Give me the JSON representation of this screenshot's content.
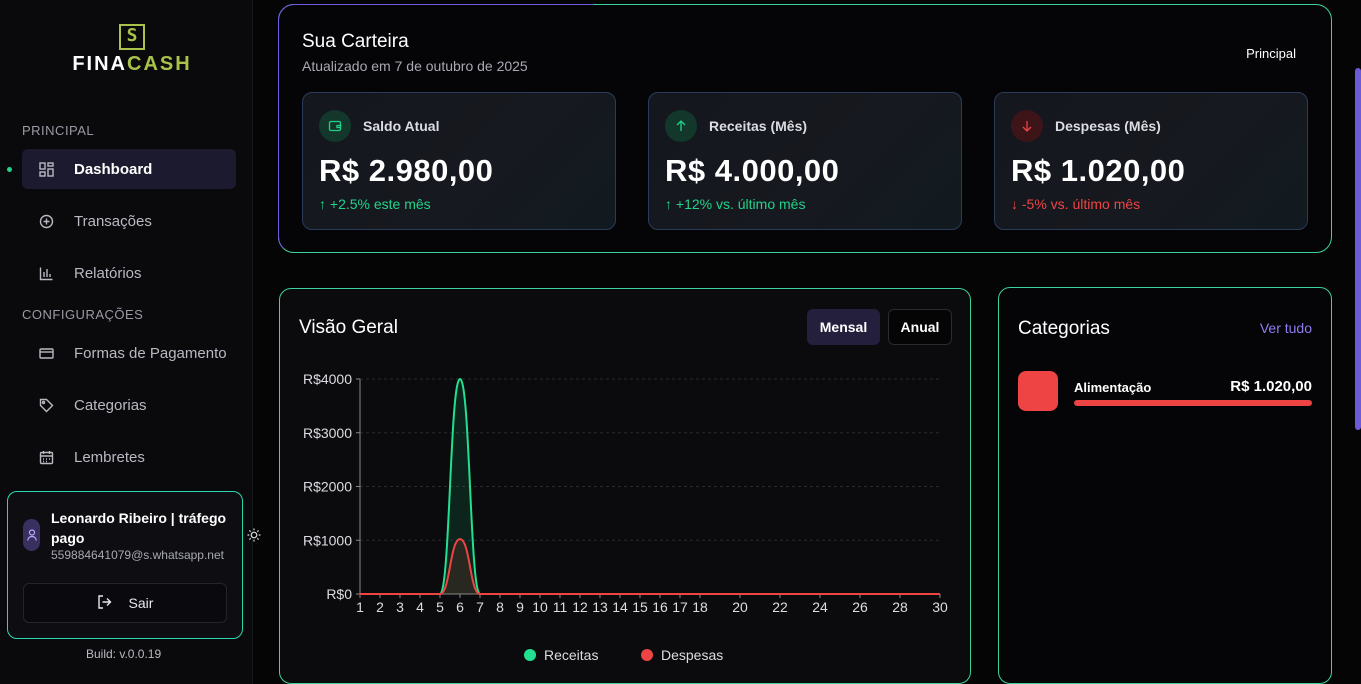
{
  "sidebar": {
    "logo_part1": "FINA",
    "logo_part2": "CASH",
    "section_main": "PRINCIPAL",
    "section_settings": "CONFIGURAÇÕES",
    "items_main": [
      {
        "label": "Dashboard",
        "icon": "layout-grid-icon",
        "active": true
      },
      {
        "label": "Transações",
        "icon": "plus-circle-icon"
      },
      {
        "label": "Relatórios",
        "icon": "bar-chart-icon"
      }
    ],
    "items_settings": [
      {
        "label": "Formas de Pagamento",
        "icon": "credit-card-icon"
      },
      {
        "label": "Categorias",
        "icon": "tag-icon"
      },
      {
        "label": "Lembretes",
        "icon": "calendar-icon"
      }
    ],
    "user": {
      "name": "Leonardo Ribeiro | tráfego pago",
      "email": "559884641079@s.whatsapp.net",
      "logout_label": "Sair"
    },
    "build": "Build: v.0.0.19"
  },
  "wallet": {
    "title": "Sua Carteira",
    "subtitle": "Atualizado em 7 de outubro de 2025",
    "badge": "Principal",
    "stats": [
      {
        "label": "Saldo Atual",
        "value": "R$ 2.980,00",
        "trend": "↑ +2.5% este mês",
        "color": "#22d38a",
        "icon": "wallet-icon"
      },
      {
        "label": "Receitas (Mês)",
        "value": "R$ 4.000,00",
        "trend": "↑ +12% vs. último mês",
        "color": "#22d38a",
        "icon": "arrow-up-icon"
      },
      {
        "label": "Despesas (Mês)",
        "value": "R$ 1.020,00",
        "trend": "↓ -5% vs. último mês",
        "color": "#ef4444",
        "icon": "arrow-down-icon"
      }
    ]
  },
  "overview": {
    "title": "Visão Geral",
    "btn_monthly": "Mensal",
    "btn_yearly": "Anual"
  },
  "chart_data": {
    "type": "area",
    "x": [
      1,
      2,
      3,
      4,
      5,
      6,
      7,
      8,
      9,
      10,
      11,
      12,
      13,
      14,
      15,
      16,
      17,
      18,
      19,
      20,
      21,
      22,
      23,
      24,
      25,
      26,
      27,
      28,
      29,
      30
    ],
    "x_tick_labels": [
      "1",
      "2",
      "3",
      "4",
      "5",
      "6",
      "7",
      "8",
      "9",
      "10",
      "11",
      "12",
      "13",
      "14",
      "15",
      "16",
      "17",
      "18",
      "20",
      "22",
      "24",
      "26",
      "28",
      "30"
    ],
    "y_tick_labels": [
      "R$0",
      "R$1000",
      "R$2000",
      "R$3000",
      "R$4000"
    ],
    "ylim": [
      0,
      4000
    ],
    "series": [
      {
        "name": "Receitas",
        "color": "#22e08f",
        "values": [
          0,
          0,
          0,
          0,
          0,
          4000,
          0,
          0,
          0,
          0,
          0,
          0,
          0,
          0,
          0,
          0,
          0,
          0,
          0,
          0,
          0,
          0,
          0,
          0,
          0,
          0,
          0,
          0,
          0,
          0
        ]
      },
      {
        "name": "Despesas",
        "color": "#ef4444",
        "values": [
          0,
          0,
          0,
          0,
          0,
          1020,
          0,
          0,
          0,
          0,
          0,
          0,
          0,
          0,
          0,
          0,
          0,
          0,
          0,
          0,
          0,
          0,
          0,
          0,
          0,
          0,
          0,
          0,
          0,
          0
        ]
      }
    ],
    "grid": true,
    "legend": "bottom"
  },
  "categories": {
    "title": "Categorias",
    "link": "Ver tudo",
    "items": [
      {
        "name": "Alimentação",
        "value": "R$ 1.020,00",
        "color": "#ef4444",
        "share": 1.0
      }
    ]
  }
}
